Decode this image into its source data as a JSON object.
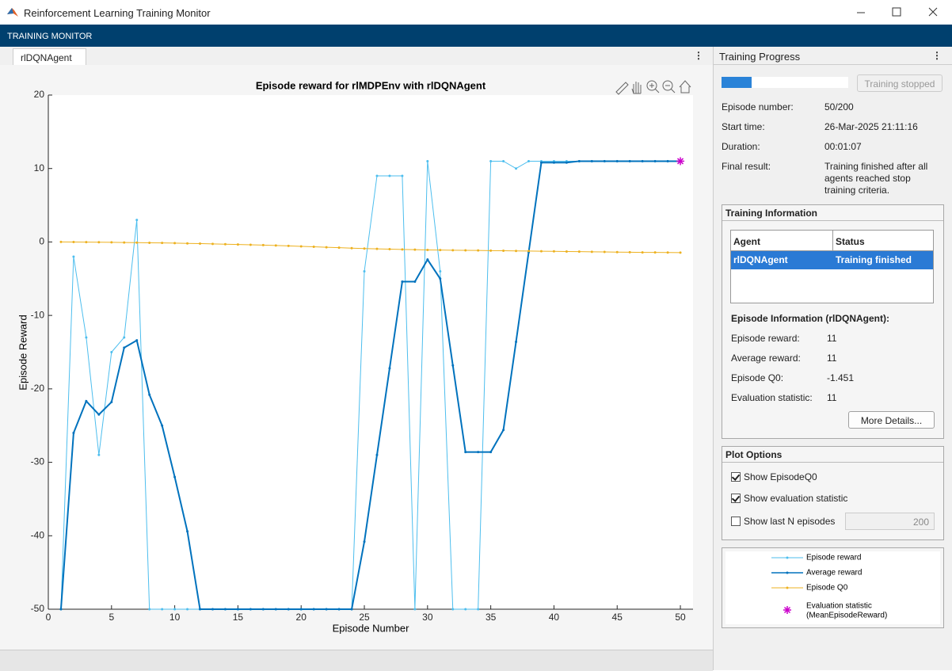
{
  "window": {
    "title": "Reinforcement Learning Training Monitor"
  },
  "toolstrip": {
    "label": "TRAINING MONITOR"
  },
  "tab": {
    "label": "rlDQNAgent"
  },
  "chart_data": {
    "type": "line",
    "title": "Episode reward for rlMDPEnv with rlDQNAgent",
    "x_label": "Episode Number",
    "y_label": "Episode Reward",
    "x": [
      1,
      2,
      3,
      4,
      5,
      6,
      7,
      8,
      9,
      10,
      11,
      12,
      13,
      14,
      15,
      16,
      17,
      18,
      19,
      20,
      21,
      22,
      23,
      24,
      25,
      26,
      27,
      28,
      29,
      30,
      31,
      32,
      33,
      34,
      35,
      36,
      37,
      38,
      39,
      40,
      41,
      42,
      43,
      44,
      45,
      46,
      47,
      48,
      49,
      50
    ],
    "series": [
      {
        "name": "Episode reward",
        "color": "#4dbeee",
        "values": [
          -50,
          -2,
          -13,
          -29,
          -15,
          -13,
          3,
          -50,
          -50,
          -50,
          -50,
          -50,
          -50,
          -50,
          -50,
          -50,
          -50,
          -50,
          -50,
          -50,
          -50,
          -50,
          -50,
          -50,
          -4,
          9,
          9,
          9,
          -50,
          11,
          -4,
          -50,
          -50,
          -50,
          11,
          11,
          10,
          11,
          11,
          11,
          11,
          11,
          11,
          11,
          11,
          11,
          11,
          11,
          11,
          11
        ]
      },
      {
        "name": "Average reward",
        "color": "#0072bd",
        "values": [
          -50,
          -26,
          -21.67,
          -23.5,
          -21.8,
          -14.4,
          -13.4,
          -20.8,
          -25,
          -32,
          -39.4,
          -50,
          -50,
          -50,
          -50,
          -50,
          -50,
          -50,
          -50,
          -50,
          -50,
          -50,
          -50,
          -50,
          -40.8,
          -29,
          -17.2,
          -5.4,
          -5.4,
          -2.4,
          -5,
          -16.8,
          -28.6,
          -28.6,
          -28.6,
          -25.6,
          -13.6,
          -1.4,
          10.8,
          10.8,
          10.8,
          11,
          11,
          11,
          11,
          11,
          11,
          11,
          11,
          11
        ]
      },
      {
        "name": "Episode Q0",
        "color": "#edb120",
        "values": [
          0,
          -0.01,
          -0.02,
          -0.03,
          -0.05,
          -0.07,
          -0.09,
          -0.11,
          -0.13,
          -0.16,
          -0.19,
          -0.22,
          -0.26,
          -0.3,
          -0.34,
          -0.38,
          -0.43,
          -0.48,
          -0.54,
          -0.6,
          -0.66,
          -0.72,
          -0.78,
          -0.84,
          -0.9,
          -0.94,
          -0.98,
          -1.02,
          -1.05,
          -1.08,
          -1.1,
          -1.12,
          -1.14,
          -1.16,
          -1.18,
          -1.2,
          -1.22,
          -1.24,
          -1.26,
          -1.28,
          -1.3,
          -1.32,
          -1.34,
          -1.36,
          -1.38,
          -1.4,
          -1.42,
          -1.43,
          -1.44,
          -1.451
        ]
      },
      {
        "name": "Evaluation statistic",
        "subtitle": "(MeanEpisodeReward)",
        "marker": "asterisk",
        "color": "#cc00cc",
        "x": [
          50
        ],
        "values": [
          11
        ]
      }
    ],
    "xlim": [
      0,
      51
    ],
    "xticks": [
      0,
      5,
      10,
      15,
      20,
      25,
      30,
      35,
      40,
      45,
      50
    ],
    "ylim": [
      -50,
      20
    ],
    "yticks": [
      -50,
      -40,
      -30,
      -20,
      -10,
      0,
      10,
      20
    ]
  },
  "progress": {
    "title": "Training Progress",
    "button": "Training stopped",
    "fields": [
      {
        "label": "Episode number:",
        "value": "50/200"
      },
      {
        "label": "Start time:",
        "value": "26-Mar-2025 21:11:16"
      },
      {
        "label": "Duration:",
        "value": "00:01:07"
      },
      {
        "label": "Final result:",
        "value": "Training finished after all agents reached stop training criteria."
      }
    ]
  },
  "training_info": {
    "title": "Training Information",
    "table": {
      "headers": [
        "Agent",
        "Status"
      ],
      "rows": [
        [
          "rlDQNAgent",
          "Training finished"
        ]
      ]
    },
    "episode_info": {
      "title": "Episode Information (rlDQNAgent):",
      "fields": [
        {
          "label": "Episode reward:",
          "value": 11
        },
        {
          "label": "Average reward:",
          "value": 11
        },
        {
          "label": "Episode Q0:",
          "value": -1.451
        },
        {
          "label": "Evaluation statistic:",
          "value": 11
        }
      ]
    },
    "button": "More Details..."
  },
  "plot_options": {
    "title": "Plot Options",
    "options": [
      {
        "label": "Show EpisodeQ0",
        "checked": true
      },
      {
        "label": "Show evaluation statistic",
        "checked": true
      },
      {
        "label": "Show last N episodes",
        "checked": false
      }
    ],
    "last_n": 200
  }
}
